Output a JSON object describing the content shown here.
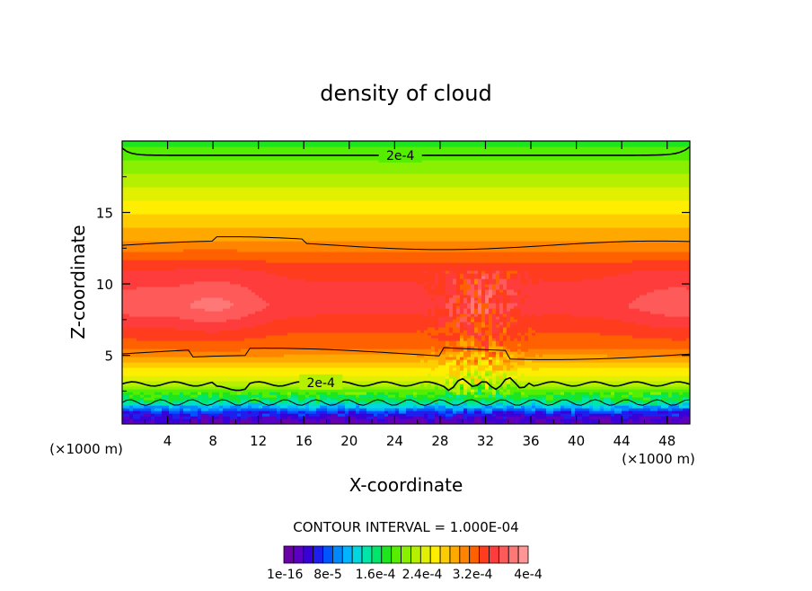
{
  "chart_data": {
    "type": "heatmap",
    "title": "density of cloud",
    "xlabel": "X-coordinate",
    "ylabel": "Z-coordinate",
    "x_unit_left": "(×1000 m)",
    "x_unit_right": "(×1000 m)",
    "xlim": [
      0,
      50
    ],
    "ylim": [
      0.2,
      20
    ],
    "x_ticks": [
      "4",
      "8",
      "12",
      "16",
      "20",
      "24",
      "28",
      "32",
      "36",
      "40",
      "44",
      "48"
    ],
    "x_tick_values": [
      4,
      8,
      12,
      16,
      20,
      24,
      28,
      32,
      36,
      40,
      44,
      48
    ],
    "y_ticks": [
      "5",
      "10",
      "15"
    ],
    "y_tick_values": [
      5,
      10,
      15
    ],
    "contour_labels": [
      {
        "text": "2e-4",
        "x": 24.5,
        "y": 19.0
      },
      {
        "text": "2e-4",
        "x": 17.5,
        "y": 3.1
      }
    ],
    "contour_interval_label": "CONTOUR INTERVAL = 1.000E-04",
    "colorbar_labels": [
      "1e-16",
      "8e-5",
      "1.6e-4",
      "2.4e-4",
      "3.2e-4",
      "4e-4"
    ],
    "colorbar_colors": [
      "#6a00a8",
      "#5b00c2",
      "#3a00d8",
      "#1e1eee",
      "#0055ff",
      "#0088ff",
      "#00b4ff",
      "#00d8e0",
      "#00e6a8",
      "#00e66a",
      "#1ee61e",
      "#55ee00",
      "#88f000",
      "#b4f000",
      "#e0f000",
      "#ffee00",
      "#ffcc00",
      "#ffa800",
      "#ff8400",
      "#ff6000",
      "#ff3c1e",
      "#ff3c3c",
      "#ff5a5a",
      "#ff7878",
      "#ff9696"
    ]
  }
}
